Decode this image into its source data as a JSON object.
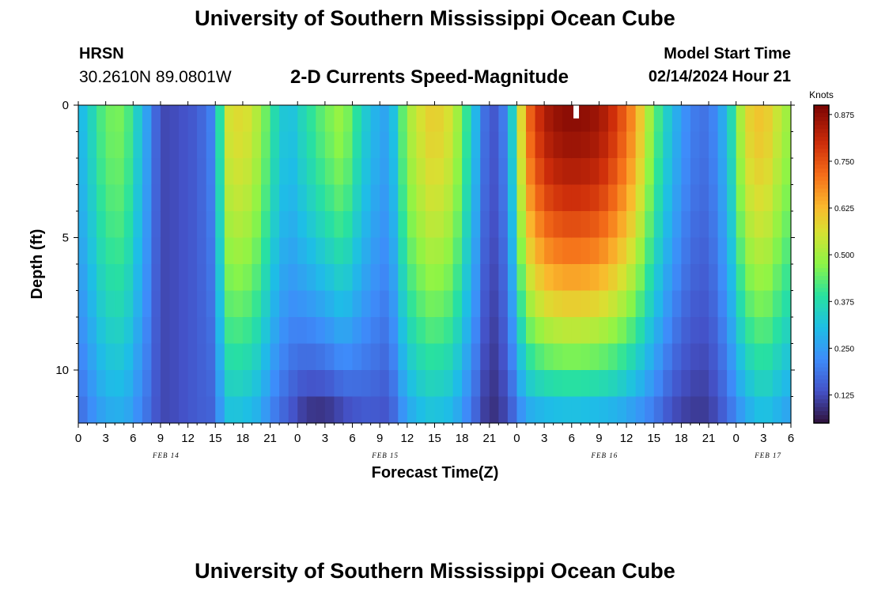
{
  "header": {
    "title_top": "University of Southern Mississippi Ocean Cube",
    "title_bottom": "University of Southern Mississippi Ocean Cube",
    "station": "HRSN",
    "coords": "30.2610N  89.0801W",
    "plot_title": "2-D Currents Speed-Magnitude",
    "model_start_label": "Model Start Time",
    "model_start_value": "02/14/2024 Hour 21"
  },
  "chart_data": {
    "type": "heatmap",
    "title": "2-D Currents Speed-Magnitude",
    "xlabel": "Forecast Time(Z)",
    "ylabel": "Depth (ft)",
    "x_range_hours": [
      0,
      78
    ],
    "y_range_ft": [
      0,
      12
    ],
    "x_tick_labels": [
      "0",
      "3",
      "6",
      "9",
      "12",
      "15",
      "18",
      "21",
      "0",
      "3",
      "6",
      "9",
      "12",
      "15",
      "18",
      "21",
      "0",
      "3",
      "6",
      "9",
      "12",
      "15",
      "18",
      "21",
      "0",
      "3",
      "6"
    ],
    "y_tick_labels": [
      "0",
      "5",
      "10"
    ],
    "date_labels": [
      {
        "label": "FEB 14",
        "hour": 9.6
      },
      {
        "label": "FEB 15",
        "hour": 33.6
      },
      {
        "label": "FEB 16",
        "hour": 57.6
      },
      {
        "label": "FEB 17",
        "hour": 75.5
      }
    ],
    "colorbar": {
      "label": "Knots",
      "range": [
        0.05,
        0.9
      ],
      "ticks": [
        "0.125",
        "0.250",
        "0.375",
        "0.500",
        "0.625",
        "0.750",
        "0.875"
      ]
    },
    "profile_hours": [
      0,
      1,
      3,
      5,
      7,
      9,
      11,
      13,
      15,
      16,
      18,
      20,
      21,
      23,
      25,
      27,
      29,
      30,
      32,
      34,
      36,
      38,
      39,
      41,
      43,
      45,
      47,
      49,
      51,
      53,
      55,
      57,
      59,
      61,
      63,
      65,
      67,
      69,
      71,
      73,
      75,
      77,
      78
    ],
    "surface_knots": [
      0.28,
      0.33,
      0.45,
      0.46,
      0.3,
      0.12,
      0.13,
      0.15,
      0.22,
      0.55,
      0.58,
      0.5,
      0.4,
      0.3,
      0.38,
      0.45,
      0.5,
      0.42,
      0.3,
      0.25,
      0.5,
      0.58,
      0.6,
      0.55,
      0.35,
      0.12,
      0.22,
      0.7,
      0.84,
      0.88,
      0.88,
      0.86,
      0.78,
      0.66,
      0.45,
      0.3,
      0.2,
      0.18,
      0.3,
      0.58,
      0.62,
      0.52,
      0.48
    ],
    "bottom_knots": [
      0.16,
      0.2,
      0.26,
      0.27,
      0.2,
      0.12,
      0.13,
      0.15,
      0.16,
      0.3,
      0.3,
      0.26,
      0.2,
      0.14,
      0.08,
      0.07,
      0.1,
      0.12,
      0.14,
      0.13,
      0.25,
      0.3,
      0.3,
      0.28,
      0.18,
      0.08,
      0.12,
      0.24,
      0.26,
      0.27,
      0.27,
      0.26,
      0.25,
      0.22,
      0.18,
      0.12,
      0.1,
      0.1,
      0.16,
      0.25,
      0.3,
      0.26,
      0.24
    ],
    "min_knots_at_depth": 0.06,
    "depth_curve_exponent": 1.6,
    "marker": {
      "hour": 54.5,
      "depth_ft_from": 0.0,
      "depth_ft_to": 0.5
    }
  }
}
